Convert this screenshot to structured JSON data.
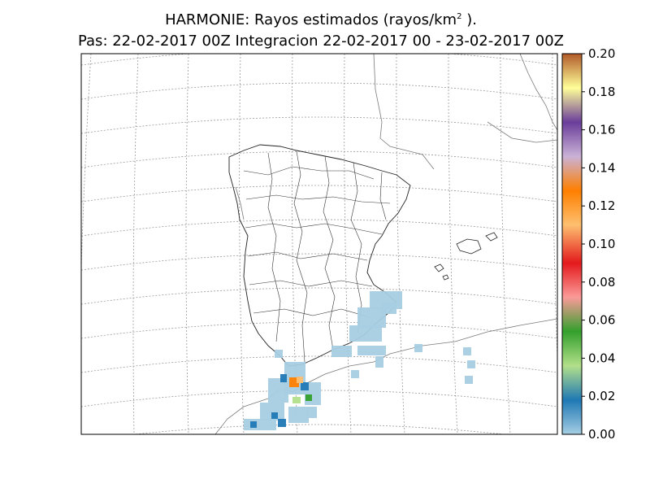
{
  "title": {
    "line1_prefix": "HARMONIE: Rayos estimados  (rayos/km",
    "line1_sup": "2",
    "line1_suffix": " ).",
    "line2": "Pas: 22-02-2017 00Z Integracion 22-02-2017 00 - 23-02-2017 00Z"
  },
  "colorbar": {
    "ticks": [
      "0.00",
      "0.02",
      "0.04",
      "0.06",
      "0.08",
      "0.10",
      "0.12",
      "0.14",
      "0.16",
      "0.18",
      "0.20"
    ],
    "range": [
      0,
      0.2
    ],
    "colors": [
      "#a6cee3",
      "#1f78b4",
      "#b2df8a",
      "#33a02c",
      "#fb9a99",
      "#e31a1c",
      "#fdbf6f",
      "#ff7f00",
      "#cab2d6",
      "#6a3d9a",
      "#ffff99",
      "#b15928"
    ]
  },
  "map": {
    "grid": "dashed",
    "field": "rayos estimados"
  }
}
